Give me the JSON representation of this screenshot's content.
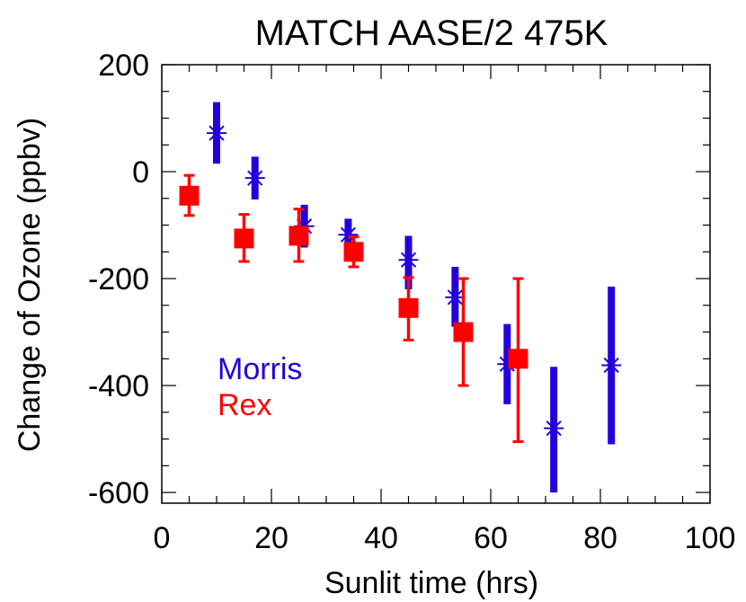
{
  "chart_data": {
    "type": "scatter",
    "title": "MATCH AASE/2 475K",
    "xlabel": "Sunlit time (hrs)",
    "ylabel": "Change of Ozone (ppbv)",
    "xlim": [
      0,
      100
    ],
    "ylim": [
      -620,
      200
    ],
    "x_ticks": [
      0,
      20,
      40,
      60,
      80,
      100
    ],
    "x_tick_labels": [
      "0",
      "20",
      "40",
      "60",
      "80",
      "100"
    ],
    "y_ticks": [
      200,
      0,
      -200,
      -400,
      -600
    ],
    "y_tick_labels": [
      "200",
      "0",
      "-200",
      "-400",
      "-600"
    ],
    "grid": false,
    "legend_position": "lower-left",
    "series": [
      {
        "name": "Morris",
        "color": "#2200dd",
        "marker": "asterisk",
        "points": [
          {
            "x": 10,
            "y": 72,
            "ylo": 15,
            "yhi": 130
          },
          {
            "x": 17,
            "y": -12,
            "ylo": -52,
            "yhi": 28
          },
          {
            "x": 26,
            "y": -102,
            "ylo": -142,
            "yhi": -62
          },
          {
            "x": 34,
            "y": -118,
            "ylo": -148,
            "yhi": -88
          },
          {
            "x": 45,
            "y": -165,
            "ylo": -220,
            "yhi": -120
          },
          {
            "x": 53.5,
            "y": -235,
            "ylo": -290,
            "yhi": -178
          },
          {
            "x": 63,
            "y": -360,
            "ylo": -435,
            "yhi": -285
          },
          {
            "x": 71.5,
            "y": -480,
            "ylo": -600,
            "yhi": -365
          },
          {
            "x": 82,
            "y": -362,
            "ylo": -510,
            "yhi": -215
          }
        ]
      },
      {
        "name": "Rex",
        "color": "#ff0000",
        "marker": "square",
        "points": [
          {
            "x": 5,
            "y": -45,
            "ylo": -82,
            "yhi": -7
          },
          {
            "x": 15,
            "y": -125,
            "ylo": -168,
            "yhi": -80
          },
          {
            "x": 25,
            "y": -120,
            "ylo": -168,
            "yhi": -70
          },
          {
            "x": 35,
            "y": -150,
            "ylo": -178,
            "yhi": -122
          },
          {
            "x": 45,
            "y": -255,
            "ylo": -315,
            "yhi": -198
          },
          {
            "x": 55,
            "y": -300,
            "ylo": -400,
            "yhi": -200
          },
          {
            "x": 65,
            "y": -350,
            "ylo": -505,
            "yhi": -200
          }
        ]
      }
    ]
  }
}
